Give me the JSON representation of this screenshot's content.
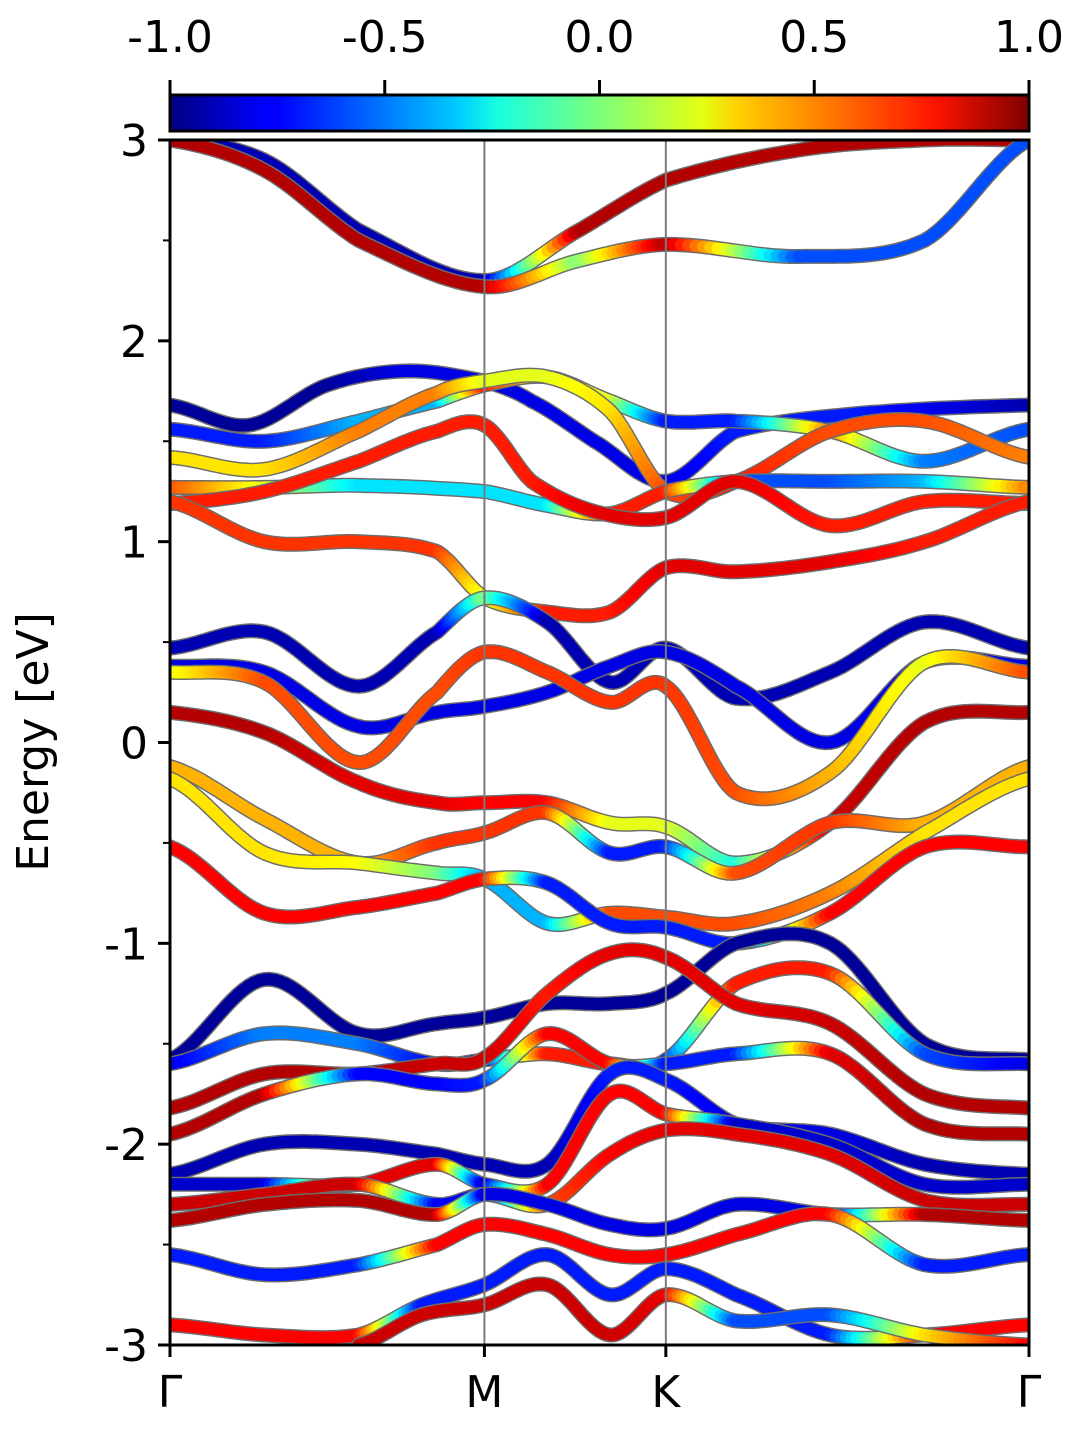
{
  "chart_data": {
    "type": "line",
    "title": "",
    "xlabel": "",
    "ylabel": "Energy [eV]",
    "ylim": [
      -3,
      3
    ],
    "y_ticks": [
      -3,
      -2,
      -1,
      0,
      1,
      2,
      3
    ],
    "y_tick_labels": [
      "-3",
      "-2",
      "-1",
      "0",
      "1",
      "2",
      "3"
    ],
    "y_minor_ticks": [
      -2.5,
      -1.5,
      -0.5,
      0.5,
      1.5,
      2.5
    ],
    "k_path": {
      "labels": [
        "Γ",
        "M",
        "K",
        "Γ"
      ],
      "positions": [
        0.0,
        1.0,
        1.577,
        2.732
      ]
    },
    "colorbar": {
      "colormap": "jet",
      "range": [
        -1.0,
        1.0
      ],
      "ticks": [
        -1.0,
        -0.5,
        0.0,
        0.5,
        1.0
      ],
      "tick_labels": [
        "-1.0",
        "-0.5",
        "0.0",
        "0.5",
        "1.0"
      ]
    },
    "series": [
      {
        "k": [
          0,
          0.3,
          0.6,
          1.0,
          1.3,
          1.577,
          2.0,
          2.4,
          2.732
        ],
        "energy": [
          3.0,
          2.9,
          2.55,
          2.3,
          2.55,
          2.8,
          2.95,
          3.0,
          3.0
        ],
        "weight": [
          -0.9,
          -0.9,
          -0.9,
          -0.9,
          0.9,
          0.9,
          0.9,
          0.9,
          0.9
        ]
      },
      {
        "k": [
          0,
          0.3,
          0.6,
          1.0,
          1.3,
          1.577,
          2.0,
          2.4,
          2.732
        ],
        "energy": [
          3.0,
          2.85,
          2.5,
          2.27,
          2.4,
          2.48,
          2.42,
          2.5,
          3.0
        ],
        "weight": [
          0.9,
          0.9,
          0.9,
          0.9,
          0.0,
          0.9,
          -0.6,
          -0.6,
          -0.6
        ]
      },
      {
        "k": [
          0,
          0.25,
          0.5,
          0.75,
          1.0,
          1.15,
          1.35,
          1.577,
          1.8,
          2.2,
          2.732
        ],
        "energy": [
          1.68,
          1.58,
          1.78,
          1.85,
          1.8,
          1.7,
          1.5,
          1.3,
          1.55,
          1.64,
          1.68
        ],
        "weight": [
          -0.95,
          -0.95,
          -0.95,
          -0.8,
          -0.8,
          -0.8,
          -0.8,
          -0.8,
          -0.7,
          -0.7,
          -0.9
        ]
      },
      {
        "k": [
          0,
          0.3,
          0.6,
          0.85,
          1.0,
          1.2,
          1.4,
          1.577,
          1.8,
          2.1,
          2.4,
          2.732
        ],
        "energy": [
          1.56,
          1.5,
          1.6,
          1.7,
          1.78,
          1.82,
          1.7,
          1.6,
          1.6,
          1.55,
          1.4,
          1.56
        ],
        "weight": [
          -0.7,
          -0.7,
          -0.4,
          -0.4,
          0.7,
          0.2,
          0.2,
          -0.7,
          -0.7,
          0.5,
          -0.5,
          -0.6
        ]
      },
      {
        "k": [
          0,
          0.3,
          0.6,
          0.85,
          1.0,
          1.2,
          1.4,
          1.577,
          1.8,
          2.1,
          2.4,
          2.732
        ],
        "energy": [
          1.42,
          1.36,
          1.55,
          1.74,
          1.8,
          1.82,
          1.65,
          1.25,
          1.3,
          1.55,
          1.6,
          1.42
        ],
        "weight": [
          0.3,
          0.3,
          0.5,
          0.5,
          0.2,
          0.2,
          0.3,
          0.6,
          0.7,
          0.6,
          0.6,
          0.5
        ]
      },
      {
        "k": [
          0,
          0.3,
          0.6,
          1.0,
          1.2,
          1.4,
          1.577,
          1.8,
          2.1,
          2.4,
          2.732
        ],
        "energy": [
          1.27,
          1.27,
          1.28,
          1.25,
          1.18,
          1.14,
          1.25,
          1.3,
          1.3,
          1.3,
          1.27
        ],
        "weight": [
          0.6,
          0.2,
          -0.3,
          -0.3,
          -0.3,
          0.7,
          0.7,
          -0.6,
          -0.6,
          -0.4,
          0.5
        ]
      },
      {
        "k": [
          0,
          0.3,
          0.6,
          0.85,
          1.0,
          1.15,
          1.35,
          1.577,
          1.8,
          2.1,
          2.4,
          2.732
        ],
        "energy": [
          1.19,
          1.25,
          1.4,
          1.55,
          1.58,
          1.3,
          1.15,
          1.12,
          1.3,
          1.08,
          1.2,
          1.19
        ],
        "weight": [
          0.7,
          0.7,
          0.7,
          0.7,
          0.7,
          0.7,
          0.8,
          0.8,
          0.8,
          0.7,
          0.7,
          0.7
        ]
      },
      {
        "k": [
          0,
          0.3,
          0.6,
          0.85,
          1.0,
          1.2,
          1.4,
          1.577,
          1.8,
          2.1,
          2.4,
          2.732
        ],
        "energy": [
          1.2,
          1.0,
          1.0,
          0.95,
          0.72,
          0.65,
          0.65,
          0.87,
          0.85,
          0.9,
          1.0,
          1.2
        ],
        "weight": [
          0.65,
          0.65,
          0.65,
          0.65,
          0.2,
          0.7,
          0.7,
          0.8,
          0.8,
          0.8,
          0.7,
          0.7
        ]
      },
      {
        "k": [
          0,
          0.3,
          0.6,
          0.85,
          1.0,
          1.2,
          1.4,
          1.577,
          1.8,
          2.1,
          2.4,
          2.732
        ],
        "energy": [
          0.47,
          0.55,
          0.28,
          0.55,
          0.72,
          0.6,
          0.3,
          0.47,
          0.22,
          0.35,
          0.6,
          0.47
        ],
        "weight": [
          -0.9,
          -0.9,
          -0.9,
          -0.9,
          0.0,
          -0.9,
          -0.9,
          -0.9,
          -0.9,
          -0.9,
          -0.9,
          -0.9
        ]
      },
      {
        "k": [
          0,
          0.3,
          0.6,
          0.85,
          1.0,
          1.2,
          1.4,
          1.577,
          1.8,
          2.1,
          2.4,
          2.732
        ],
        "energy": [
          0.38,
          0.35,
          0.08,
          0.15,
          0.18,
          0.25,
          0.38,
          0.45,
          0.28,
          0.0,
          0.4,
          0.38
        ],
        "weight": [
          -0.8,
          -0.8,
          -0.8,
          -0.8,
          -0.8,
          -0.8,
          -0.8,
          -0.8,
          -0.8,
          -0.8,
          -0.8,
          -0.8
        ]
      },
      {
        "k": [
          0,
          0.3,
          0.6,
          0.85,
          1.0,
          1.2,
          1.4,
          1.577,
          1.8,
          2.1,
          2.4,
          2.732
        ],
        "energy": [
          0.35,
          0.3,
          -0.1,
          0.25,
          0.45,
          0.35,
          0.2,
          0.28,
          -0.25,
          -0.15,
          0.4,
          0.35
        ],
        "weight": [
          0.2,
          0.6,
          0.6,
          0.6,
          0.65,
          0.65,
          0.65,
          0.65,
          0.6,
          0.4,
          0.2,
          0.6
        ]
      },
      {
        "k": [
          0,
          0.3,
          0.6,
          0.85,
          1.0,
          1.2,
          1.4,
          1.577,
          1.8,
          2.1,
          2.4,
          2.732
        ],
        "energy": [
          0.15,
          0.05,
          -0.2,
          -0.3,
          -0.3,
          -0.3,
          -0.4,
          -0.42,
          -0.6,
          -0.4,
          0.1,
          0.15
        ],
        "weight": [
          0.9,
          0.9,
          0.8,
          0.8,
          0.75,
          0.75,
          0.2,
          0.2,
          -0.2,
          0.85,
          0.9,
          0.9
        ]
      },
      {
        "k": [
          0,
          0.3,
          0.6,
          0.85,
          1.0,
          1.2,
          1.4,
          1.577,
          1.8,
          2.1,
          2.4,
          2.732
        ],
        "energy": [
          -0.12,
          -0.38,
          -0.6,
          -0.5,
          -0.45,
          -0.35,
          -0.55,
          -0.52,
          -0.65,
          -0.4,
          -0.4,
          -0.12
        ],
        "weight": [
          0.4,
          0.4,
          0.4,
          0.65,
          0.65,
          0.65,
          -0.7,
          -0.7,
          0.6,
          0.65,
          0.4,
          0.4
        ]
      },
      {
        "k": [
          0,
          0.3,
          0.6,
          0.85,
          1.0,
          1.2,
          1.4,
          1.577,
          1.8,
          2.1,
          2.4,
          2.732
        ],
        "energy": [
          -0.18,
          -0.55,
          -0.6,
          -0.65,
          -0.68,
          -0.9,
          -0.85,
          -0.87,
          -0.9,
          -0.75,
          -0.45,
          -0.18
        ],
        "weight": [
          0.3,
          0.3,
          0.25,
          0.0,
          -0.4,
          -0.4,
          0.6,
          0.6,
          0.6,
          0.5,
          0.3,
          0.3
        ]
      },
      {
        "k": [
          0,
          0.3,
          0.6,
          0.85,
          1.0,
          1.2,
          1.4,
          1.577,
          1.8,
          2.1,
          2.4,
          2.732
        ],
        "energy": [
          -0.52,
          -0.85,
          -0.82,
          -0.75,
          -0.68,
          -0.7,
          -0.9,
          -0.92,
          -1.0,
          -0.85,
          -0.52,
          -0.52
        ],
        "weight": [
          0.75,
          0.75,
          0.75,
          0.75,
          0.75,
          -0.7,
          -0.7,
          -0.7,
          -0.7,
          0.75,
          0.75,
          0.75
        ]
      },
      {
        "k": [
          0,
          0.3,
          0.6,
          0.85,
          1.0,
          1.2,
          1.4,
          1.577,
          1.8,
          2.1,
          2.4,
          2.732
        ],
        "energy": [
          -1.58,
          -1.18,
          -1.45,
          -1.4,
          -1.37,
          -1.3,
          -1.3,
          -1.25,
          -1.0,
          -1.0,
          -1.5,
          -1.58
        ],
        "weight": [
          -0.95,
          -0.95,
          -0.95,
          -0.95,
          -0.95,
          -0.95,
          -0.95,
          -0.95,
          -0.95,
          -0.95,
          -0.95,
          -0.95
        ]
      },
      {
        "k": [
          0,
          0.3,
          0.6,
          0.85,
          1.0,
          1.2,
          1.4,
          1.577,
          1.8,
          2.1,
          2.4,
          2.732
        ],
        "energy": [
          -1.6,
          -1.45,
          -1.5,
          -1.6,
          -1.58,
          -1.55,
          -1.6,
          -1.58,
          -1.2,
          -1.15,
          -1.55,
          -1.6
        ],
        "weight": [
          -0.8,
          -0.5,
          -0.5,
          -0.75,
          -0.75,
          0.7,
          0.7,
          -0.7,
          0.7,
          0.7,
          -0.6,
          -0.8
        ]
      },
      {
        "k": [
          0,
          0.3,
          0.6,
          0.85,
          1.0,
          1.2,
          1.4,
          1.577,
          1.8,
          2.1,
          2.4,
          2.732
        ],
        "energy": [
          -1.82,
          -1.65,
          -1.65,
          -1.6,
          -1.57,
          -1.25,
          -1.05,
          -1.07,
          -1.3,
          -1.4,
          -1.75,
          -1.82
        ],
        "weight": [
          0.9,
          0.9,
          0.9,
          0.85,
          0.85,
          0.7,
          0.8,
          0.8,
          0.8,
          0.85,
          0.9,
          0.9
        ]
      },
      {
        "k": [
          0,
          0.3,
          0.6,
          0.85,
          1.0,
          1.2,
          1.4,
          1.577,
          1.8,
          2.1,
          2.4,
          2.732
        ],
        "energy": [
          -1.95,
          -1.75,
          -1.65,
          -1.7,
          -1.68,
          -1.45,
          -1.6,
          -1.6,
          -1.55,
          -1.55,
          -1.9,
          -1.95
        ],
        "weight": [
          0.9,
          0.9,
          -0.75,
          -0.75,
          -0.7,
          0.75,
          0.75,
          -0.7,
          -0.7,
          0.8,
          0.9,
          0.9
        ]
      },
      {
        "k": [
          0,
          0.3,
          0.6,
          0.85,
          1.0,
          1.2,
          1.4,
          1.577,
          1.8,
          2.1,
          2.4,
          2.732
        ],
        "energy": [
          -2.15,
          -2.0,
          -2.0,
          -2.05,
          -2.1,
          -2.1,
          -1.65,
          -1.68,
          -1.9,
          -1.95,
          -2.1,
          -2.15
        ],
        "weight": [
          -0.9,
          -0.9,
          -0.9,
          -0.9,
          -0.9,
          -0.9,
          -0.7,
          -0.7,
          -0.8,
          -0.8,
          -0.9,
          -0.9
        ]
      },
      {
        "k": [
          0,
          0.3,
          0.6,
          0.85,
          1.0,
          1.2,
          1.4,
          1.577,
          1.8,
          2.1,
          2.4,
          2.732
        ],
        "energy": [
          -2.2,
          -2.2,
          -2.2,
          -2.1,
          -2.2,
          -2.2,
          -1.75,
          -1.85,
          -1.9,
          -2.0,
          -2.2,
          -2.2
        ],
        "weight": [
          -0.85,
          -0.85,
          0.8,
          0.8,
          -0.85,
          0.75,
          0.75,
          0.75,
          -0.85,
          -0.85,
          -0.85,
          -0.85
        ]
      },
      {
        "k": [
          0,
          0.3,
          0.6,
          0.85,
          1.0,
          1.2,
          1.4,
          1.577,
          1.8,
          2.1,
          2.4,
          2.732
        ],
        "energy": [
          -2.3,
          -2.25,
          -2.2,
          -2.3,
          -2.25,
          -2.3,
          -2.05,
          -1.93,
          -1.95,
          -2.05,
          -2.28,
          -2.3
        ],
        "weight": [
          0.85,
          0.85,
          0.85,
          -0.75,
          -0.75,
          0.6,
          0.75,
          0.8,
          0.8,
          0.8,
          0.85,
          0.85
        ]
      },
      {
        "k": [
          0,
          0.3,
          0.6,
          0.85,
          1.0,
          1.2,
          1.4,
          1.577,
          1.8,
          2.1,
          2.4,
          2.732
        ],
        "energy": [
          -2.38,
          -2.3,
          -2.28,
          -2.35,
          -2.25,
          -2.3,
          -2.4,
          -2.42,
          -2.3,
          -2.35,
          -2.35,
          -2.38
        ],
        "weight": [
          0.9,
          0.9,
          0.9,
          0.9,
          -0.8,
          -0.8,
          -0.8,
          -0.8,
          -0.8,
          -0.8,
          0.9,
          0.9
        ]
      },
      {
        "k": [
          0,
          0.3,
          0.6,
          0.85,
          1.0,
          1.2,
          1.4,
          1.577,
          1.8,
          2.1,
          2.4,
          2.732
        ],
        "energy": [
          -2.55,
          -2.65,
          -2.6,
          -2.5,
          -2.4,
          -2.45,
          -2.55,
          -2.55,
          -2.45,
          -2.35,
          -2.6,
          -2.55
        ],
        "weight": [
          -0.7,
          -0.7,
          -0.7,
          0.75,
          0.75,
          0.75,
          0.75,
          0.75,
          0.75,
          0.75,
          -0.7,
          -0.7
        ]
      },
      {
        "k": [
          0,
          0.3,
          0.6,
          0.8,
          1.0,
          1.2,
          1.4,
          1.577,
          1.8,
          2.1,
          2.4,
          2.732
        ],
        "energy": [
          -2.9,
          -2.95,
          -2.95,
          -2.8,
          -2.7,
          -2.55,
          -2.75,
          -2.62,
          -2.75,
          -2.95,
          -2.95,
          -2.9
        ],
        "weight": [
          0.75,
          0.75,
          0.75,
          -0.7,
          -0.7,
          -0.7,
          -0.7,
          -0.7,
          -0.7,
          -0.7,
          0.75,
          0.75
        ]
      },
      {
        "k": [
          0.6,
          0.8,
          1.0,
          1.2,
          1.4,
          1.577,
          1.8,
          2.1,
          2.4,
          2.732
        ],
        "energy": [
          -3.0,
          -2.85,
          -2.8,
          -2.7,
          -2.95,
          -2.75,
          -2.88,
          -2.85,
          -2.95,
          -3.0
        ],
        "weight": [
          0.85,
          0.85,
          0.85,
          0.85,
          0.85,
          0.8,
          -0.6,
          -0.6,
          0.3,
          0.75
        ]
      }
    ]
  }
}
